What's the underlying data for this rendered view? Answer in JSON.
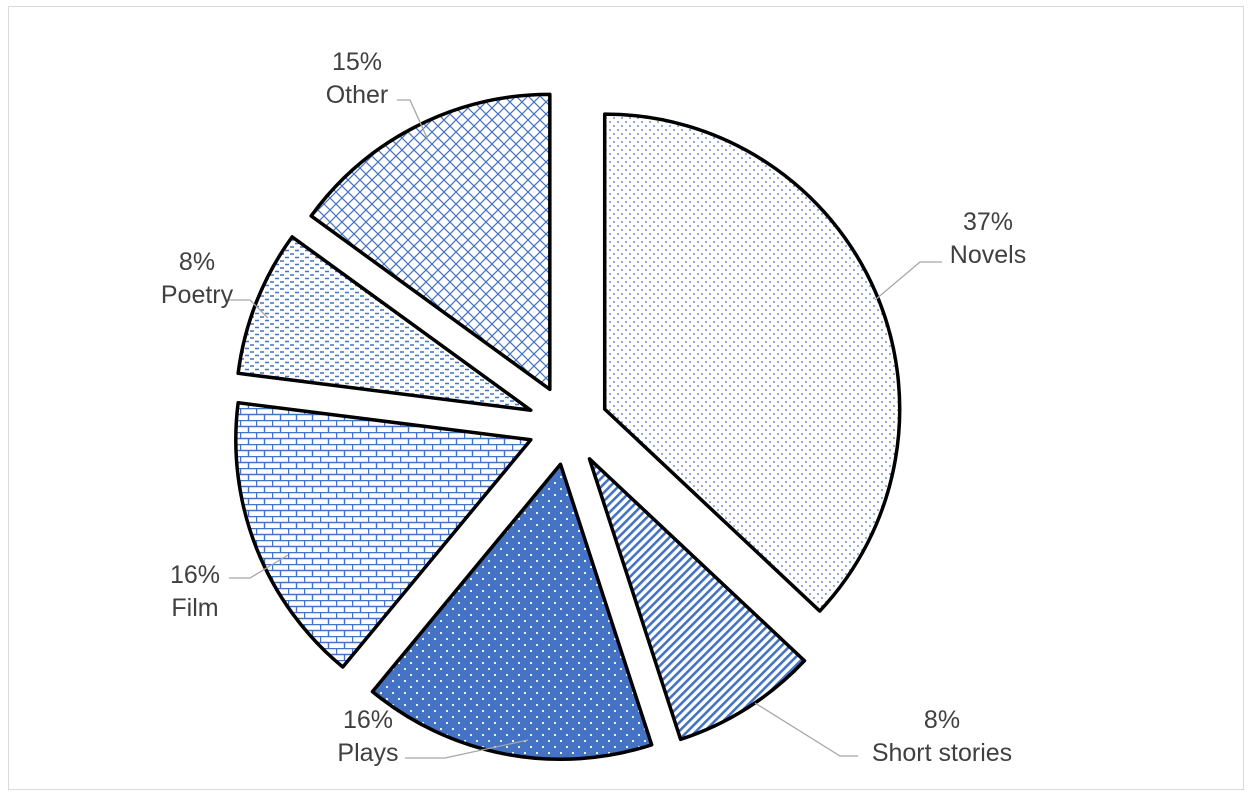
{
  "chart_data": {
    "type": "pie",
    "title": "",
    "slices": [
      {
        "label": "Novels",
        "value": 37,
        "percent_label": "37%",
        "pattern": "dots-small",
        "fill": "#ffffff",
        "pattern_color": "#4472c4"
      },
      {
        "label": "Short stories",
        "value": 8,
        "percent_label": "8%",
        "pattern": "vertical-lines",
        "fill": "#ffffff",
        "pattern_color": "#4472c4"
      },
      {
        "label": "Plays",
        "value": 16,
        "percent_label": "16%",
        "pattern": "dots-on-solid",
        "fill": "#4472c4",
        "pattern_color": "#ffffff"
      },
      {
        "label": "Film",
        "value": 16,
        "percent_label": "16%",
        "pattern": "brick",
        "fill": "#ffffff",
        "pattern_color": "#4472c4"
      },
      {
        "label": "Poetry",
        "value": 8,
        "percent_label": "8%",
        "pattern": "dashed-horizontal",
        "fill": "#ffffff",
        "pattern_color": "#4472c4"
      },
      {
        "label": "Other",
        "value": 15,
        "percent_label": "15%",
        "pattern": "diagonal-cross",
        "fill": "#ffffff",
        "pattern_color": "#4472c4"
      }
    ],
    "legend": "none",
    "data_labels": "outside-with-leader-lines",
    "exploded": true,
    "start_angle_deg": 0,
    "direction": "clockwise"
  }
}
